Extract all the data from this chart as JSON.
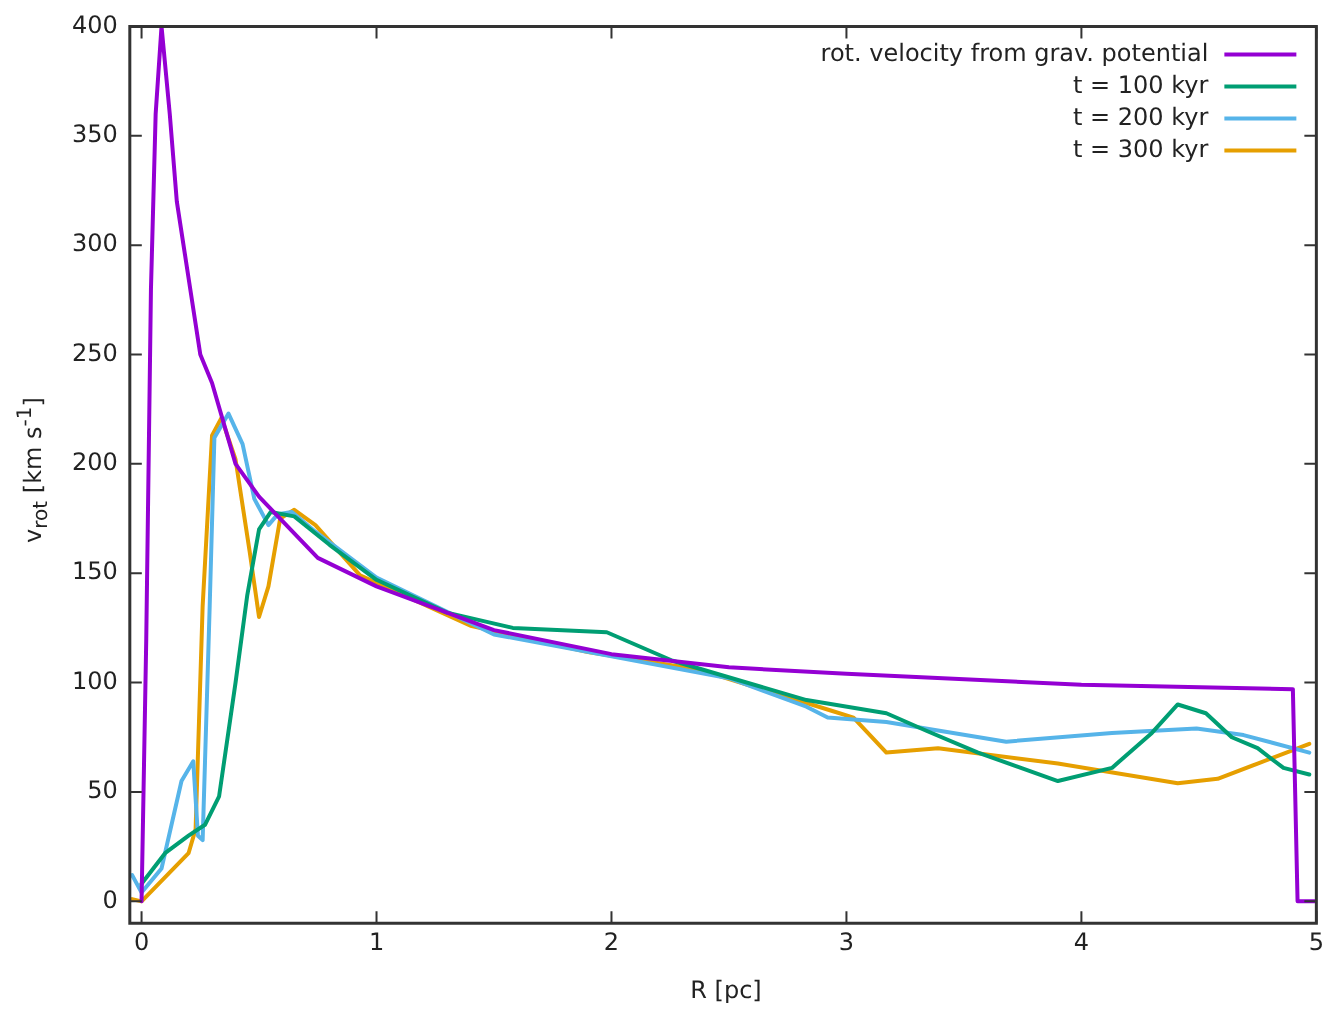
{
  "chart_data": {
    "type": "line",
    "xlabel": "R [pc]",
    "ylabel": "v$_{rot}$ [km s$^{-1}$]",
    "xlim": [
      -0.05,
      5
    ],
    "ylim": [
      -10,
      400
    ],
    "xticks": [
      0,
      1,
      2,
      3,
      4,
      5
    ],
    "yticks": [
      0,
      50,
      100,
      150,
      200,
      250,
      300,
      350,
      400
    ],
    "grid": false,
    "legend": "top right",
    "marker": "none",
    "line_style": "solid",
    "series": [
      {
        "name": "rot. velocity from grav. potential",
        "color": "#9400d3",
        "x": [
          0,
          0.02,
          0.04,
          0.06,
          0.085,
          0.12,
          0.15,
          0.2,
          0.25,
          0.3,
          0.4,
          0.5,
          0.75,
          1,
          1.5,
          2,
          2.5,
          3,
          4,
          4.9,
          4.92,
          5
        ],
        "values": [
          0,
          120,
          280,
          360,
          400,
          360,
          320,
          285,
          250,
          237,
          200,
          185,
          157,
          144,
          124,
          113,
          107,
          104,
          99,
          97,
          0,
          0
        ]
      },
      {
        "name": "t = 100 kyr",
        "color": "#009e73",
        "x": [
          0,
          0.05,
          0.1,
          0.2,
          0.27,
          0.33,
          0.4,
          0.45,
          0.5,
          0.55,
          0.65,
          0.8,
          1,
          1.3,
          1.58,
          1.98,
          2.26,
          2.83,
          3.17,
          3.34,
          3.56,
          3.9,
          4.13,
          4.3,
          4.41,
          4.53,
          4.64,
          4.75,
          4.86,
          4.97
        ],
        "values": [
          8,
          15,
          22,
          30,
          35,
          48,
          100,
          140,
          170,
          178,
          176,
          163,
          147,
          132,
          125,
          123,
          110,
          92,
          86,
          78,
          68,
          55,
          61,
          77,
          90,
          86,
          75,
          70,
          61,
          58
        ]
      },
      {
        "name": "t = 200 kyr",
        "color": "#56b4e9",
        "x": [
          -0.04,
          0,
          0.085,
          0.17,
          0.22,
          0.24,
          0.26,
          0.29,
          0.31,
          0.37,
          0.43,
          0.48,
          0.54,
          0.58,
          0.64,
          0.74,
          1,
          1.5,
          2,
          2.5,
          2.83,
          2.92,
          3.17,
          3.68,
          4.13,
          4.49,
          4.69,
          4.97
        ],
        "values": [
          12,
          4,
          15,
          55,
          64,
          30,
          28,
          135,
          212,
          223,
          209,
          184,
          172,
          177,
          178,
          169,
          148,
          122,
          112,
          102,
          89,
          84,
          82,
          73,
          77,
          79,
          76,
          68
        ]
      },
      {
        "name": "t = 300 kyr",
        "color": "#e69f00",
        "x": [
          -0.04,
          0,
          0.2,
          0.23,
          0.26,
          0.3,
          0.34,
          0.4,
          0.46,
          0.5,
          0.54,
          0.59,
          0.65,
          0.74,
          0.93,
          1.4,
          1.9,
          2.37,
          2.94,
          3.03,
          3.17,
          3.39,
          3.9,
          4.41,
          4.58,
          4.75,
          4.97
        ],
        "values": [
          1,
          0,
          22,
          33,
          135,
          213,
          221,
          202,
          160,
          130,
          144,
          175,
          179,
          172,
          149,
          126,
          114,
          106,
          87,
          84,
          68,
          70,
          63,
          54,
          56,
          63,
          72
        ]
      }
    ]
  }
}
